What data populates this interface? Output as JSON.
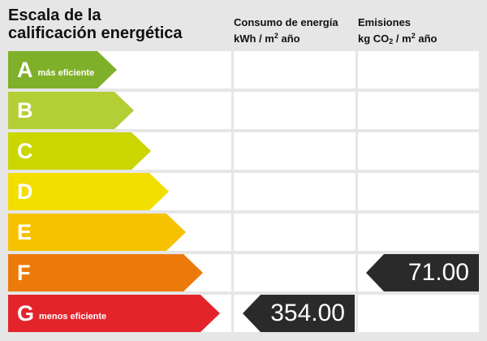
{
  "title": {
    "line1": "Escala de la",
    "line2": "calificación energética"
  },
  "columns": {
    "consumo": {
      "line1": "Consumo de energía",
      "unit_pre": "kWh / m",
      "unit_sup": "2",
      "unit_post": " año"
    },
    "emisiones": {
      "line1": "Emisiones",
      "unit_pre": "kg CO",
      "unit_sub": "2",
      "unit_mid": " / m",
      "unit_sup": "2",
      "unit_post": " año"
    }
  },
  "ratings": [
    {
      "letter": "A",
      "desc": "más eficiente",
      "color": "#7fb02a"
    },
    {
      "letter": "B",
      "desc": "",
      "color": "#b3cf35"
    },
    {
      "letter": "C",
      "desc": "",
      "color": "#cbd600"
    },
    {
      "letter": "D",
      "desc": "",
      "color": "#f2df00"
    },
    {
      "letter": "E",
      "desc": "",
      "color": "#f6c200"
    },
    {
      "letter": "F",
      "desc": "",
      "color": "#ec7a0a"
    },
    {
      "letter": "G",
      "desc": "menos eficiente",
      "color": "#e3242b"
    }
  ],
  "values": {
    "consumo": {
      "rating": "G",
      "value": "354.00"
    },
    "emisiones": {
      "rating": "F",
      "value": "71.00"
    }
  },
  "colors": {
    "background": "#e6e6e6",
    "badge": "#2a2a2a"
  }
}
